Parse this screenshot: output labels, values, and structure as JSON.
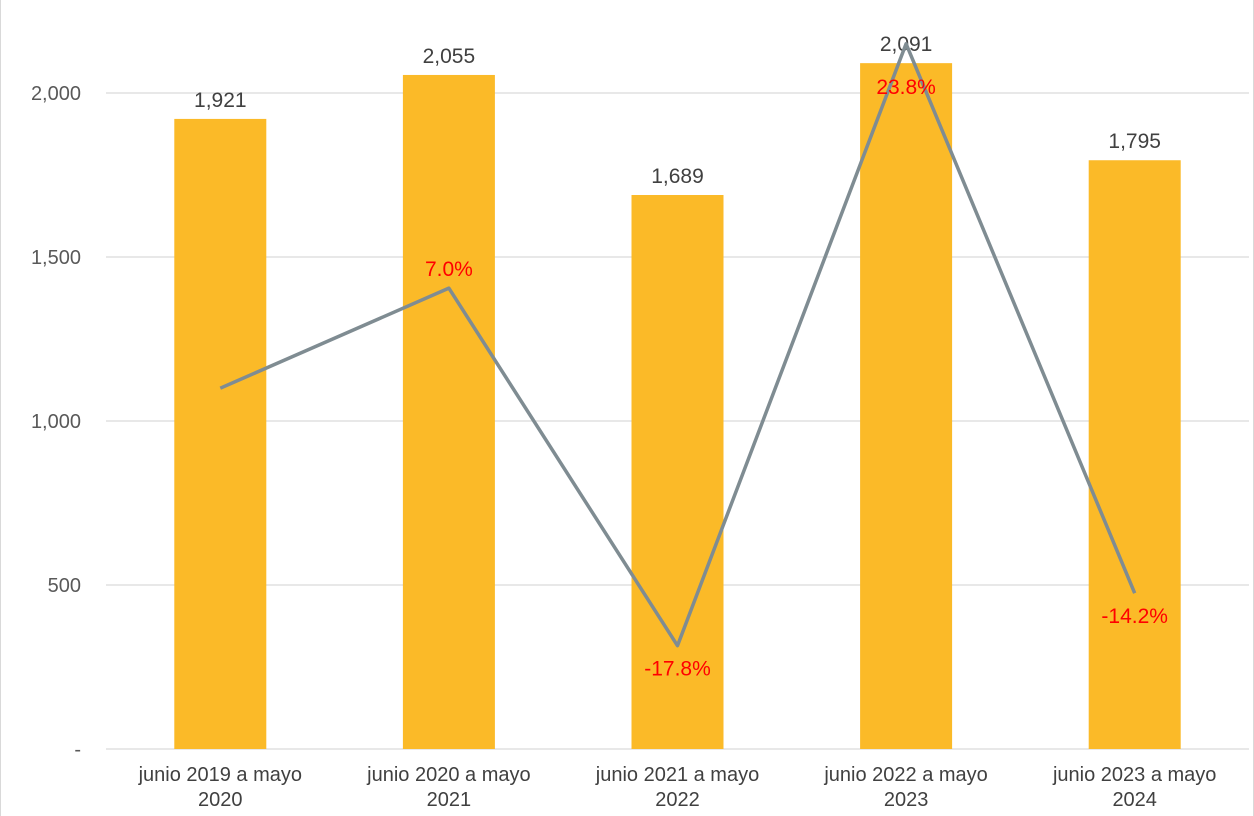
{
  "chart_data": {
    "type": "bar",
    "title": "",
    "xlabel": "",
    "ylabel": "",
    "categories": [
      [
        "junio 2019 a mayo",
        "2020"
      ],
      [
        "junio 2020 a mayo",
        "2021"
      ],
      [
        "junio 2021 a mayo",
        "2022"
      ],
      [
        "junio 2022 a mayo",
        "2023"
      ],
      [
        "junio 2023 a mayo",
        "2024"
      ]
    ],
    "values": [
      1921,
      2055,
      1689,
      2091,
      1795
    ],
    "value_labels": [
      "1,921",
      "2,055",
      "1,689",
      "2,091",
      "1,795"
    ],
    "ylim": [
      0,
      2100
    ],
    "yticks": [
      0,
      500,
      1000,
      1500,
      2000
    ],
    "ytick_labels": [
      "-",
      "500",
      "1,000",
      "1,500",
      "2,000"
    ],
    "grid": true,
    "bar_color": "#fbba28",
    "line_series": {
      "values": [
        null,
        7.0,
        -17.8,
        23.8,
        -14.2
      ],
      "labels": [
        "",
        "7.0%",
        "-17.8%",
        "23.8%",
        "-14.2%"
      ],
      "color": "#7f8c92",
      "label_color": "#ff0000",
      "line_points_secondary_scale": [
        1100,
        1405,
        315,
        2150,
        475
      ]
    }
  }
}
